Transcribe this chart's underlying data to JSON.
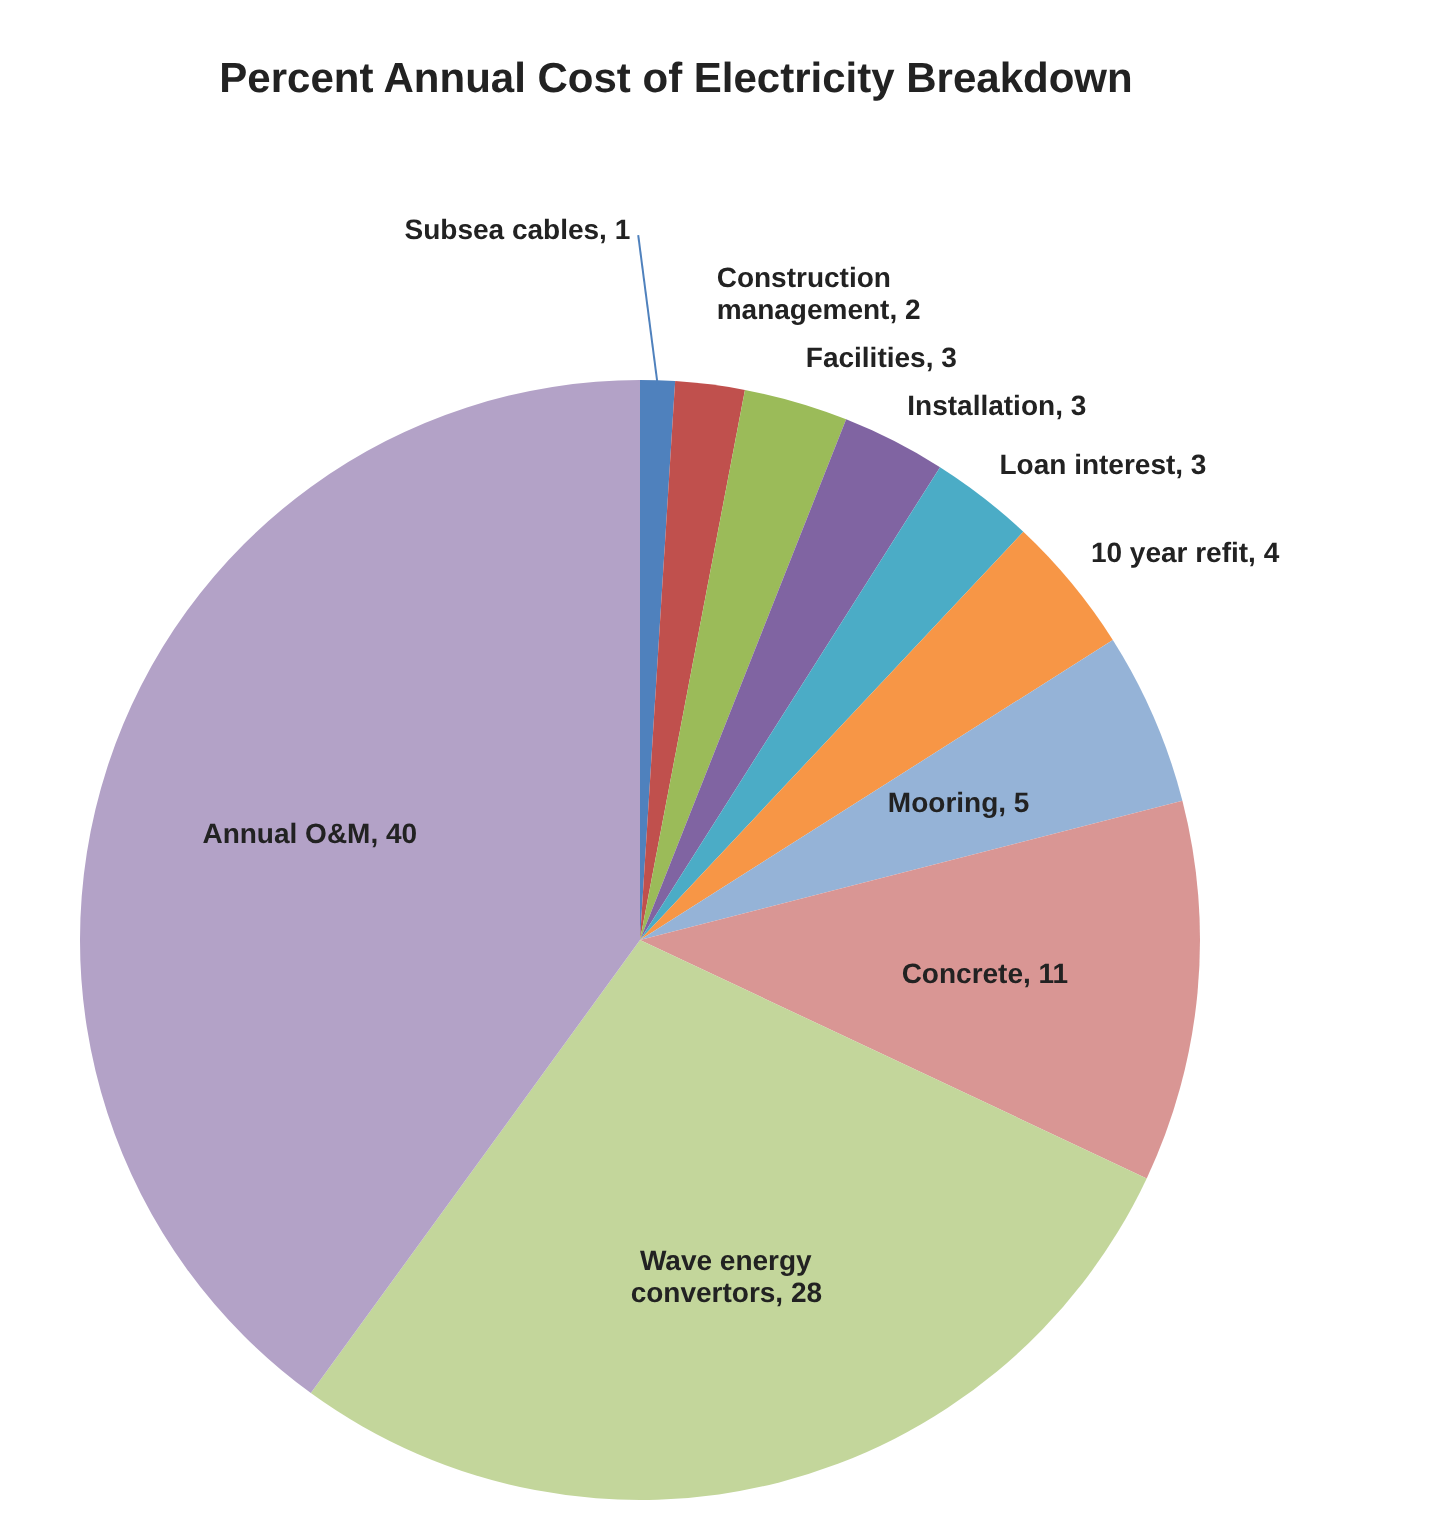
{
  "chart_data": {
    "type": "pie",
    "title": "Percent Annual Cost of Electricity  Breakdown",
    "categories": [
      "Subsea cables",
      "Construction management",
      "Facilities",
      "Installation",
      "Loan interest",
      "10 year refit",
      "Mooring",
      "Concrete",
      "Wave energy convertors",
      "Annual O&M"
    ],
    "values": [
      1,
      2,
      3,
      3,
      3,
      4,
      5,
      11,
      28,
      40
    ],
    "colors": [
      "#4f81bd",
      "#c0504d",
      "#9bbb59",
      "#8064a2",
      "#4bacc6",
      "#f79646",
      "#95b3d7",
      "#d99694",
      "#c3d69b",
      "#b3a2c7"
    ],
    "value_labels": [
      ", 1",
      ", 2",
      ", 3",
      ", 3",
      ", 3",
      ", 4",
      ", 5",
      ", 11",
      ", 28",
      ", 40"
    ]
  }
}
